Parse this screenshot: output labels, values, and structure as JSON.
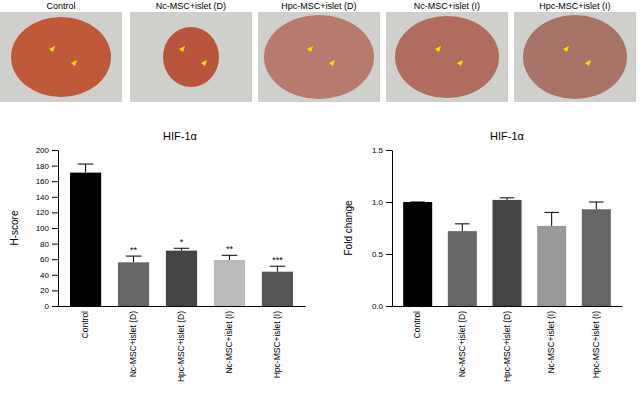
{
  "images": {
    "labels": [
      "Control",
      "Nc-MSC+islet (D)",
      "Hpc-MSC+islet (D)",
      "Nc-MSC+islet (I)",
      "Hpc-MSC+islet (I)"
    ]
  },
  "chart_data": [
    {
      "type": "bar",
      "title": "HIF-1α",
      "y_label": "H-score",
      "categories": [
        "Control",
        "Nc-MSC+islet (D)",
        "Hpc-MSC+islet (D)",
        "Nc-MSC+islet (I)",
        "Hpc-MSC+islet (I)"
      ],
      "values": [
        171,
        56,
        71,
        59,
        44
      ],
      "errors": [
        11,
        8,
        3,
        6,
        7
      ],
      "annotations": [
        null,
        "**",
        "*",
        "**",
        "***"
      ],
      "colors": [
        "#000000",
        "#666666",
        "#444444",
        "#bbbbbb",
        "#555555"
      ],
      "ylim": [
        0,
        200
      ],
      "yticks": [
        0,
        20,
        40,
        60,
        80,
        100,
        120,
        140,
        160,
        180,
        200
      ]
    },
    {
      "type": "bar",
      "title": "HIF-1α",
      "y_label": "Fold change",
      "categories": [
        "Control",
        "Nc-MSC+islet (D)",
        "Hpc-MSC+islet (D)",
        "Nc-MSC+islet (I)",
        "Hpc-MSC+islet (I)"
      ],
      "values": [
        1.0,
        0.72,
        1.02,
        0.77,
        0.93
      ],
      "errors": [
        0,
        0.07,
        0.02,
        0.13,
        0.07
      ],
      "colors": [
        "#000000",
        "#666666",
        "#444444",
        "#999999",
        "#666666"
      ],
      "ylim": [
        0,
        1.5
      ],
      "yticks": [
        {
          "value": 0,
          "label": "0.0"
        },
        {
          "value": 0.5,
          "label": "0.5"
        },
        {
          "value": 1,
          "label": "1.0"
        },
        {
          "value": 1.5,
          "label": "1.5"
        }
      ]
    }
  ]
}
